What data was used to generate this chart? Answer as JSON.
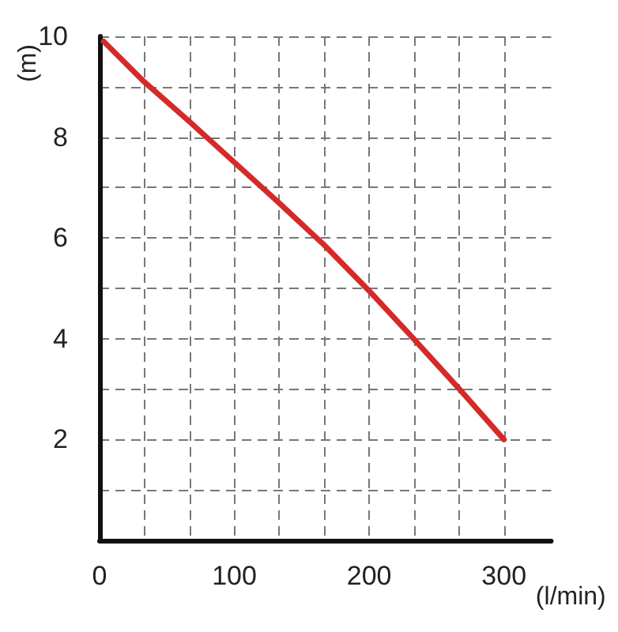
{
  "chart_data": {
    "type": "line",
    "xlabel": "(l/min)",
    "ylabel": "(m)",
    "xlim": [
      0,
      335
    ],
    "ylim": [
      0,
      10
    ],
    "xticks": [
      0,
      {
        "value": 33.333,
        "label": null
      },
      {
        "value": 66.667,
        "label": null
      },
      100,
      {
        "value": 133.333,
        "label": null
      },
      {
        "value": 166.667,
        "label": null
      },
      200,
      {
        "value": 233.333,
        "label": null
      },
      {
        "value": 266.667,
        "label": null
      },
      300
    ],
    "yticks": [
      {
        "value": 0,
        "label": null
      },
      {
        "value": 1,
        "label": null
      },
      2,
      {
        "value": 3,
        "label": null
      },
      4,
      {
        "value": 5,
        "label": null
      },
      6,
      {
        "value": 7,
        "label": null
      },
      8,
      {
        "value": 9,
        "label": null
      },
      10
    ],
    "grid": true,
    "marker": "none",
    "line_style": "solid",
    "series": [
      {
        "color": "#d42a2a",
        "x": [
          3,
          33,
          67,
          100,
          133,
          167,
          200,
          233,
          267,
          300
        ],
        "values": [
          9.9,
          9.1,
          8.3,
          7.5,
          6.7,
          5.85,
          4.95,
          4.0,
          3.0,
          2.0
        ]
      }
    ]
  }
}
